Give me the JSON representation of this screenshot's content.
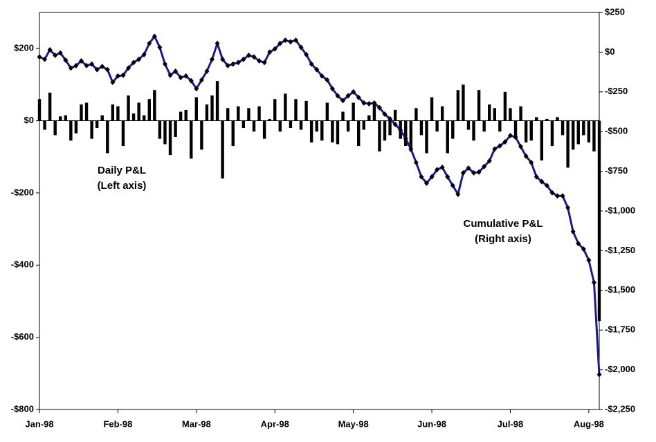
{
  "chart_data": {
    "type": "bar",
    "categories": [
      "Jan-98",
      null,
      null,
      null,
      null,
      null,
      null,
      null,
      null,
      null,
      null,
      null,
      null,
      null,
      null,
      "Feb-98",
      null,
      null,
      null,
      null,
      null,
      null,
      null,
      null,
      null,
      null,
      null,
      null,
      null,
      null,
      "Mar-98",
      null,
      null,
      null,
      null,
      null,
      null,
      null,
      null,
      null,
      null,
      null,
      null,
      null,
      null,
      "Apr-98",
      null,
      null,
      null,
      null,
      null,
      null,
      null,
      null,
      null,
      null,
      null,
      null,
      null,
      null,
      "May-98",
      null,
      null,
      null,
      null,
      null,
      null,
      null,
      null,
      null,
      null,
      null,
      null,
      null,
      null,
      "Jun-98",
      null,
      null,
      null,
      null,
      null,
      null,
      null,
      null,
      null,
      null,
      null,
      null,
      null,
      null,
      "Jul-98",
      null,
      null,
      null,
      null,
      null,
      null,
      null,
      null,
      null,
      null,
      null,
      null,
      null,
      null,
      "Aug-98",
      null,
      null
    ],
    "series": [
      {
        "name": "Daily P&L",
        "type": "bar",
        "axis": "y",
        "color": "#000000",
        "values": [
          60,
          -25,
          78,
          -40,
          12,
          15,
          -55,
          -35,
          45,
          50,
          -50,
          -20,
          15,
          -90,
          45,
          40,
          -70,
          70,
          20,
          50,
          15,
          60,
          85,
          -50,
          -65,
          -95,
          -45,
          25,
          30,
          -105,
          65,
          -80,
          45,
          70,
          110,
          -160,
          35,
          -70,
          40,
          -20,
          35,
          -30,
          40,
          -50,
          5,
          60,
          -30,
          75,
          -20,
          60,
          -25,
          55,
          -60,
          -30,
          -55,
          50,
          -60,
          -65,
          25,
          -30,
          50,
          -70,
          -25,
          15,
          50,
          -85,
          -55,
          -40,
          30,
          -50,
          -70,
          -85,
          35,
          -40,
          -90,
          65,
          -30,
          40,
          -90,
          -50,
          85,
          100,
          -25,
          -55,
          85,
          -30,
          45,
          35,
          -30,
          80,
          35,
          -50,
          40,
          -60,
          -55,
          10,
          -110,
          5,
          -70,
          10,
          -40,
          -130,
          -80,
          -65,
          -40,
          -60,
          -85,
          -555
        ]
      },
      {
        "name": "Cumulative P&L",
        "type": "line",
        "axis": "y2",
        "color": "#1a1a8c",
        "marker_color": "#000000",
        "values": [
          -30,
          -45,
          15,
          -20,
          -5,
          -50,
          -100,
          -85,
          -55,
          -85,
          -75,
          -110,
          -90,
          -110,
          -190,
          -150,
          -145,
          -100,
          -65,
          -45,
          -15,
          55,
          100,
          30,
          -75,
          -145,
          -120,
          -160,
          -150,
          -180,
          -230,
          -175,
          -120,
          -45,
          55,
          -45,
          -85,
          -75,
          -65,
          -45,
          -20,
          -30,
          -55,
          -65,
          0,
          20,
          55,
          75,
          65,
          75,
          30,
          -15,
          -75,
          -110,
          -150,
          -175,
          -230,
          -275,
          -305,
          -275,
          -250,
          -285,
          -320,
          -325,
          -320,
          -350,
          -390,
          -420,
          -455,
          -490,
          -545,
          -610,
          -695,
          -785,
          -825,
          -785,
          -740,
          -725,
          -785,
          -840,
          -895,
          -760,
          -730,
          -760,
          -755,
          -720,
          -685,
          -610,
          -590,
          -565,
          -525,
          -535,
          -595,
          -655,
          -695,
          -785,
          -815,
          -840,
          -885,
          -905,
          -905,
          -980,
          -1130,
          -1205,
          -1240,
          -1310,
          -1450,
          -2030
        ]
      }
    ],
    "ylim": [
      -800,
      300
    ],
    "yticks": [
      {
        "value": -800,
        "label": "-$800"
      },
      {
        "value": -600,
        "label": "-$600"
      },
      {
        "value": -400,
        "label": "-$400"
      },
      {
        "value": -200,
        "label": "-$200"
      },
      {
        "value": 0,
        "label": "$0"
      },
      {
        "value": 200,
        "label": "$200"
      }
    ],
    "y2lim": [
      -2250,
      250
    ],
    "y2ticks": [
      {
        "value": -2250,
        "label": "-$2,250"
      },
      {
        "value": -2000,
        "label": "-$2,000"
      },
      {
        "value": -1750,
        "label": "-$1,750"
      },
      {
        "value": -1500,
        "label": "-$1,500"
      },
      {
        "value": -1250,
        "label": "-$1,250"
      },
      {
        "value": -1000,
        "label": "-$1,000"
      },
      {
        "value": -750,
        "label": "-$750"
      },
      {
        "value": -500,
        "label": "-$500"
      },
      {
        "value": -250,
        "label": "-$250"
      },
      {
        "value": 0,
        "label": "$0"
      },
      {
        "value": 250,
        "label": "$250"
      }
    ],
    "annotations": [
      "Daily P&L",
      "(Left axis)",
      "Cumulative P&L",
      "(Right axis)"
    ],
    "grid": false
  }
}
